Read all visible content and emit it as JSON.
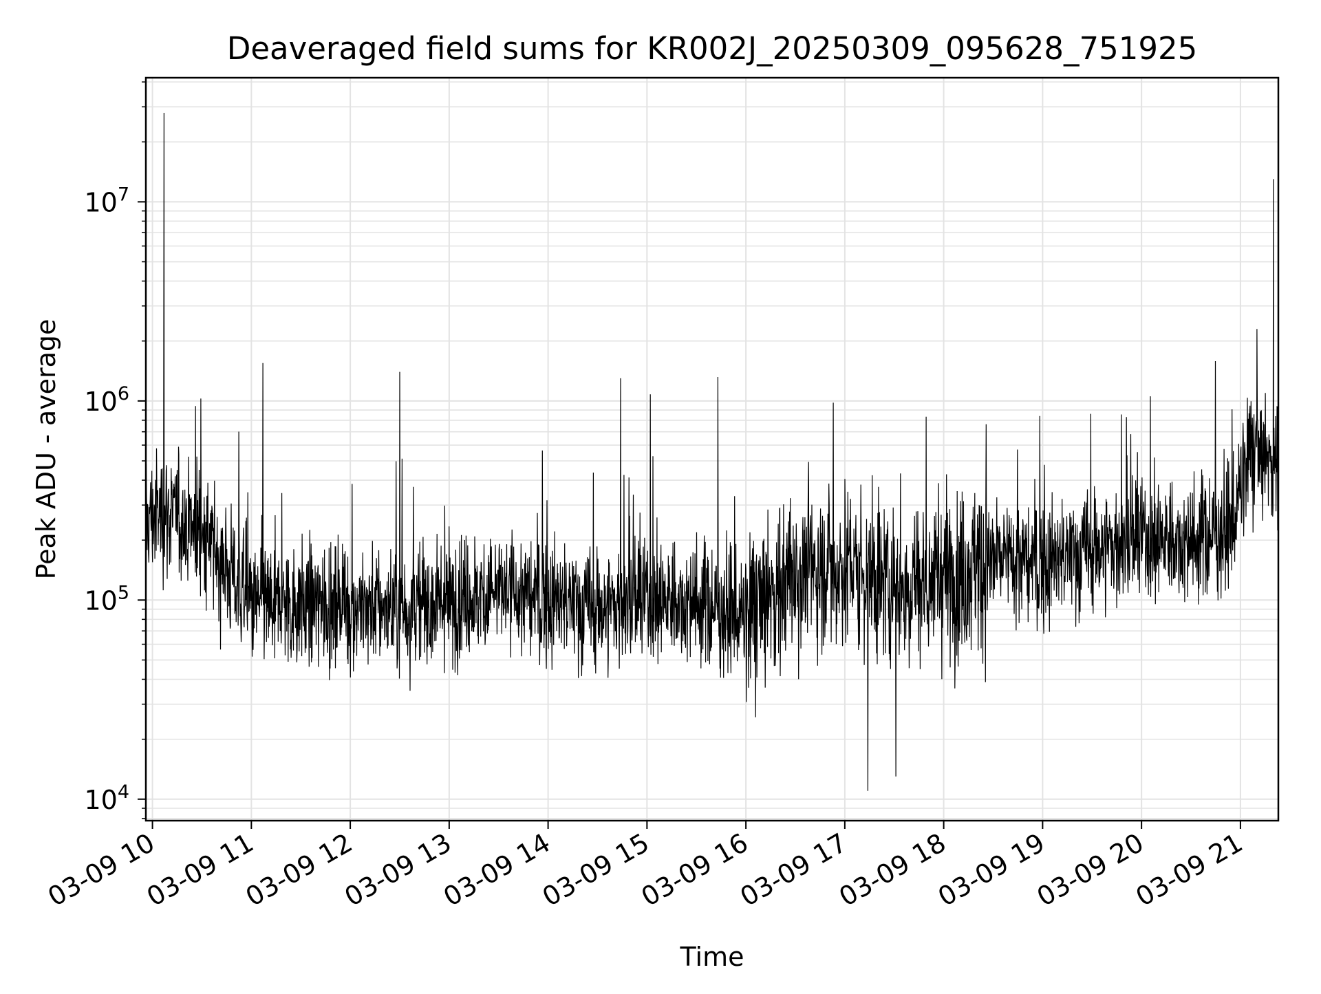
{
  "chart_data": {
    "type": "line",
    "title": "Deaveraged field sums for KR002J_20250309_095628_751925",
    "xlabel": "Time",
    "ylabel": "Peak ADU - average",
    "yscale": "log",
    "ylim": [
      7800,
      42000000
    ],
    "xlim": [
      "2025-03-09 09:56",
      "2025-03-09 21:23"
    ],
    "grid": true,
    "x_tick_labels": [
      "03-09 10",
      "03-09 11",
      "03-09 12",
      "03-09 13",
      "03-09 14",
      "03-09 15",
      "03-09 16",
      "03-09 17",
      "03-09 18",
      "03-09 19",
      "03-09 20",
      "03-09 21"
    ],
    "y_ticks": [
      {
        "base": "10",
        "exp": "4",
        "value": 10000
      },
      {
        "base": "10",
        "exp": "5",
        "value": 100000
      },
      {
        "base": "10",
        "exp": "6",
        "value": 1000000
      },
      {
        "base": "10",
        "exp": "7",
        "value": 10000000
      }
    ],
    "line_color": "#000000",
    "series": [
      {
        "x": [
          "2025-03-09 09:56",
          "2025-03-09 10:07",
          "2025-03-09 10:30",
          "2025-03-09 11:00",
          "2025-03-09 11:30",
          "2025-03-09 12:00",
          "2025-03-09 12:30",
          "2025-03-09 13:00",
          "2025-03-09 13:30",
          "2025-03-09 14:00",
          "2025-03-09 14:30",
          "2025-03-09 15:00",
          "2025-03-09 15:30",
          "2025-03-09 16:00",
          "2025-03-09 16:30",
          "2025-03-09 17:00",
          "2025-03-09 17:30",
          "2025-03-09 18:00",
          "2025-03-09 18:30",
          "2025-03-09 19:00",
          "2025-03-09 19:30",
          "2025-03-09 20:00",
          "2025-03-09 20:30",
          "2025-03-09 20:55",
          "2025-03-09 21:05",
          "2025-03-09 21:15",
          "2025-03-09 21:23"
        ],
        "values": [
          250000,
          280000,
          220000,
          95000,
          95000,
          95000,
          90000,
          100000,
          110000,
          100000,
          90000,
          100000,
          100000,
          80000,
          140000,
          150000,
          120000,
          130000,
          160000,
          150000,
          180000,
          200000,
          200000,
          230000,
          550000,
          520000,
          480000
        ]
      }
    ],
    "spikes": [
      {
        "x": "2025-03-09 10:07",
        "y": 28000000
      },
      {
        "x": "2025-03-09 11:07",
        "y": 1550000
      },
      {
        "x": "2025-03-09 12:30",
        "y": 1400000
      },
      {
        "x": "2025-03-09 14:44",
        "y": 1300000
      },
      {
        "x": "2025-03-09 15:02",
        "y": 1080000
      },
      {
        "x": "2025-03-09 15:43",
        "y": 1320000
      },
      {
        "x": "2025-03-09 16:53",
        "y": 980000
      },
      {
        "x": "2025-03-09 21:20",
        "y": 13000000
      },
      {
        "x": "2025-03-09 21:10",
        "y": 2300000
      },
      {
        "x": "2025-03-09 17:14",
        "y": 11000
      },
      {
        "x": "2025-03-09 17:31",
        "y": 13000
      }
    ]
  }
}
